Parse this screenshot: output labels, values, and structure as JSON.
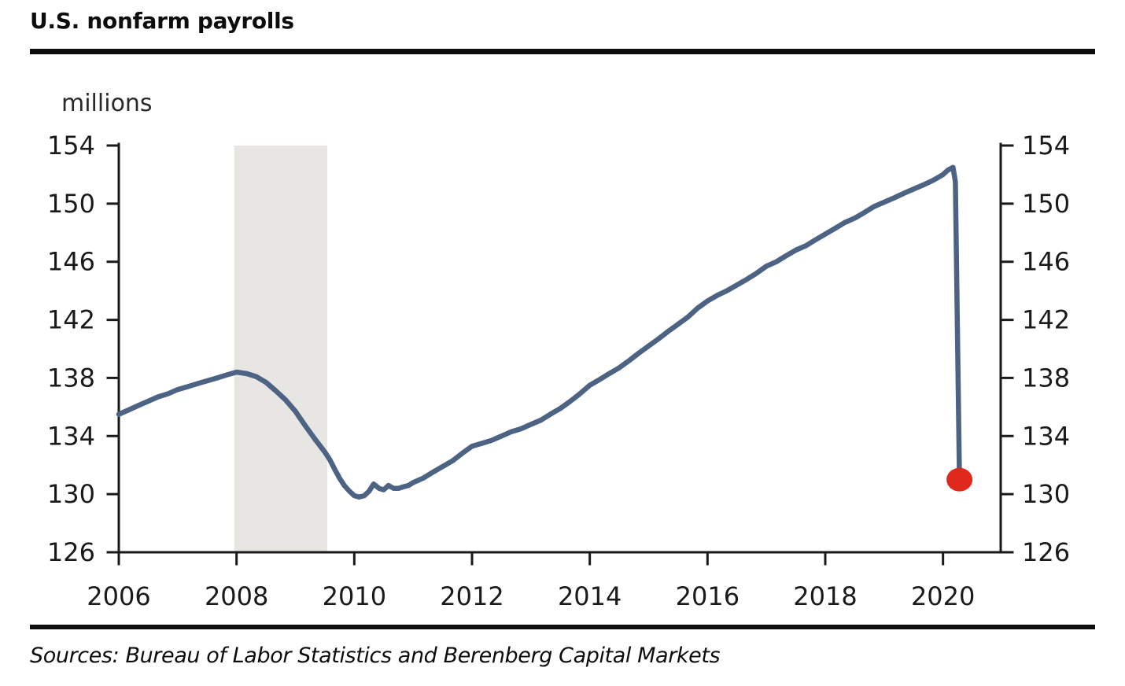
{
  "header": {
    "title": "U.S. nonfarm payrolls"
  },
  "unit_label": "millions",
  "footer": {
    "sources": "Sources: Bureau of Labor Statistics and Berenberg Capital Markets"
  },
  "chart_data": {
    "type": "line",
    "title": "U.S. nonfarm payrolls",
    "ylabel": "millions",
    "xlabel": "",
    "ylim": [
      126,
      154
    ],
    "yticks": [
      126,
      130,
      134,
      138,
      142,
      146,
      150,
      154
    ],
    "xlim": [
      2006,
      2020.98
    ],
    "xticks": [
      2006,
      2008,
      2010,
      2012,
      2014,
      2016,
      2018,
      2020
    ],
    "grid": false,
    "legend": "none",
    "dual_y_axis": true,
    "recession_band": {
      "start": 2007.96,
      "end": 2009.54
    },
    "series": [
      {
        "name": "U.S. nonfarm payrolls (millions)",
        "x": [
          2006.0,
          2006.17,
          2006.33,
          2006.5,
          2006.67,
          2006.83,
          2007.0,
          2007.17,
          2007.33,
          2007.5,
          2007.67,
          2007.83,
          2008.0,
          2008.17,
          2008.33,
          2008.5,
          2008.67,
          2008.83,
          2009.0,
          2009.17,
          2009.33,
          2009.5,
          2009.58,
          2009.67,
          2009.75,
          2009.83,
          2009.92,
          2010.0,
          2010.08,
          2010.17,
          2010.25,
          2010.33,
          2010.42,
          2010.5,
          2010.58,
          2010.67,
          2010.75,
          2010.83,
          2010.92,
          2011.0,
          2011.17,
          2011.33,
          2011.5,
          2011.67,
          2011.83,
          2012.0,
          2012.17,
          2012.33,
          2012.5,
          2012.67,
          2012.83,
          2013.0,
          2013.17,
          2013.33,
          2013.5,
          2013.67,
          2013.83,
          2014.0,
          2014.17,
          2014.33,
          2014.5,
          2014.67,
          2014.83,
          2015.0,
          2015.17,
          2015.33,
          2015.5,
          2015.67,
          2015.83,
          2016.0,
          2016.17,
          2016.33,
          2016.5,
          2016.67,
          2016.83,
          2017.0,
          2017.17,
          2017.33,
          2017.5,
          2017.67,
          2017.83,
          2018.0,
          2018.17,
          2018.33,
          2018.5,
          2018.67,
          2018.83,
          2019.0,
          2019.17,
          2019.33,
          2019.5,
          2019.67,
          2019.83,
          2020.0,
          2020.08,
          2020.17,
          2020.21,
          2020.28
        ],
        "y": [
          135.5,
          135.8,
          136.1,
          136.4,
          136.7,
          136.9,
          137.2,
          137.4,
          137.6,
          137.8,
          138.0,
          138.2,
          138.4,
          138.3,
          138.1,
          137.7,
          137.1,
          136.5,
          135.7,
          134.7,
          133.8,
          132.9,
          132.4,
          131.7,
          131.1,
          130.6,
          130.2,
          129.9,
          129.8,
          129.9,
          130.2,
          130.7,
          130.4,
          130.3,
          130.6,
          130.4,
          130.4,
          130.5,
          130.6,
          130.8,
          131.1,
          131.5,
          131.9,
          132.3,
          132.8,
          133.3,
          133.5,
          133.7,
          134.0,
          134.3,
          134.5,
          134.8,
          135.1,
          135.5,
          135.9,
          136.4,
          136.9,
          137.5,
          137.9,
          138.3,
          138.7,
          139.2,
          139.7,
          140.2,
          140.7,
          141.2,
          141.7,
          142.2,
          142.8,
          143.3,
          143.7,
          144.0,
          144.4,
          144.8,
          145.2,
          145.7,
          146.0,
          146.4,
          146.8,
          147.1,
          147.5,
          147.9,
          148.3,
          148.7,
          149.0,
          149.4,
          149.8,
          150.1,
          150.4,
          150.7,
          151.0,
          151.3,
          151.6,
          152.0,
          152.3,
          152.5,
          151.5,
          131.0
        ]
      }
    ],
    "endpoint_marker": {
      "x": 2020.28,
      "y": 131.0
    },
    "colors": {
      "line": "#4d6384",
      "recession_band": "#e8e6e3",
      "marker": "#e0281c",
      "axis": "#1a1a1a",
      "text": "#1a1a1a"
    }
  }
}
